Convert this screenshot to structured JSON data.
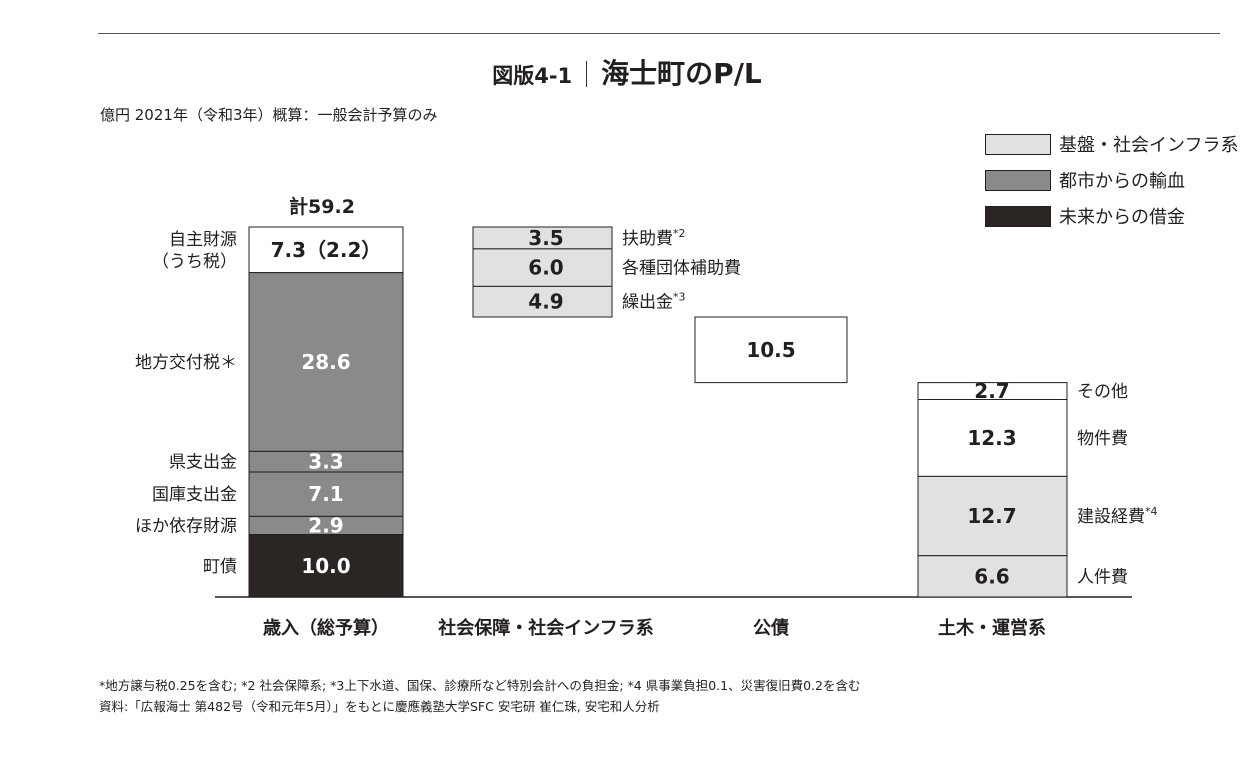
{
  "header": {
    "figure_number": "図版4-1",
    "title": "海士町のP/L",
    "unit_note": "億円 2021年（令和3年）概算：一般会計予算のみ"
  },
  "legend": [
    {
      "label": "基盤・社会インフラ系",
      "type": "infra"
    },
    {
      "label": "都市からの輸血",
      "type": "transfer"
    },
    {
      "label": "未来からの借金",
      "type": "debt"
    }
  ],
  "colors": {
    "own": "#ffffff",
    "transfer": "#8a8a8a",
    "debt": "#2b2624",
    "infra": "#e1e1e1",
    "other": "#ffffff",
    "border": "#231f20"
  },
  "chart_data": {
    "type": "bar",
    "subtype": "stacked-waterfall",
    "unit": "億円",
    "ylim": [
      0,
      59.2
    ],
    "total_label": "計59.2",
    "groups": [
      {
        "category": "歳入（総予算）",
        "base": 0,
        "label_side": "left",
        "segments": [
          {
            "label": "自主財源\n（うち税）",
            "value": 7.3,
            "display": "7.3（2.2）",
            "type": "own",
            "sup": ""
          },
          {
            "label": "地方交付税＊",
            "value": 28.6,
            "display": "28.6",
            "type": "transfer",
            "sup": ""
          },
          {
            "label": "県支出金",
            "value": 3.3,
            "display": "3.3",
            "type": "transfer",
            "sup": ""
          },
          {
            "label": "国庫支出金",
            "value": 7.1,
            "display": "7.1",
            "type": "transfer",
            "sup": ""
          },
          {
            "label": "ほか依存財源",
            "value": 2.9,
            "display": "2.9",
            "type": "transfer",
            "sup": ""
          },
          {
            "label": "町債",
            "value": 10.0,
            "display": "10.0",
            "type": "debt",
            "sup": ""
          }
        ]
      },
      {
        "category": "社会保障・社会インフラ系",
        "base": 44.8,
        "label_side": "right",
        "segments": [
          {
            "label": "扶助費",
            "value": 3.5,
            "display": "3.5",
            "type": "infra",
            "sup": "*2"
          },
          {
            "label": "各種団体補助費",
            "value": 6.0,
            "display": "6.0",
            "type": "infra",
            "sup": ""
          },
          {
            "label": "繰出金",
            "value": 4.9,
            "display": "4.9",
            "type": "infra",
            "sup": "*3"
          }
        ]
      },
      {
        "category": "公債",
        "base": 34.3,
        "label_side": "right",
        "segments": [
          {
            "label": "",
            "value": 10.5,
            "display": "10.5",
            "type": "other",
            "sup": ""
          }
        ]
      },
      {
        "category": "土木・運営系",
        "base": 0,
        "label_side": "right",
        "segments": [
          {
            "label": "その他",
            "value": 2.7,
            "display": "2.7",
            "type": "other",
            "sup": ""
          },
          {
            "label": "物件費",
            "value": 12.3,
            "display": "12.3",
            "type": "other",
            "sup": ""
          },
          {
            "label": "建設経費",
            "value": 12.7,
            "display": "12.7",
            "type": "infra",
            "sup": "*4"
          },
          {
            "label": "人件費",
            "value": 6.6,
            "display": "6.6",
            "type": "infra",
            "sup": ""
          }
        ]
      }
    ]
  },
  "footnotes": [
    "*地方譲与税0.25を含む; *2 社会保障系; *3上下水道、国保、診療所など特別会計への負担金; *4 県事業負担0.1、災害復旧費0.2を含む",
    "資料:「広報海士 第482号（令和元年5月）」をもとに慶應義塾大学SFC 安宅研 崔仁珠, 安宅和人分析"
  ]
}
